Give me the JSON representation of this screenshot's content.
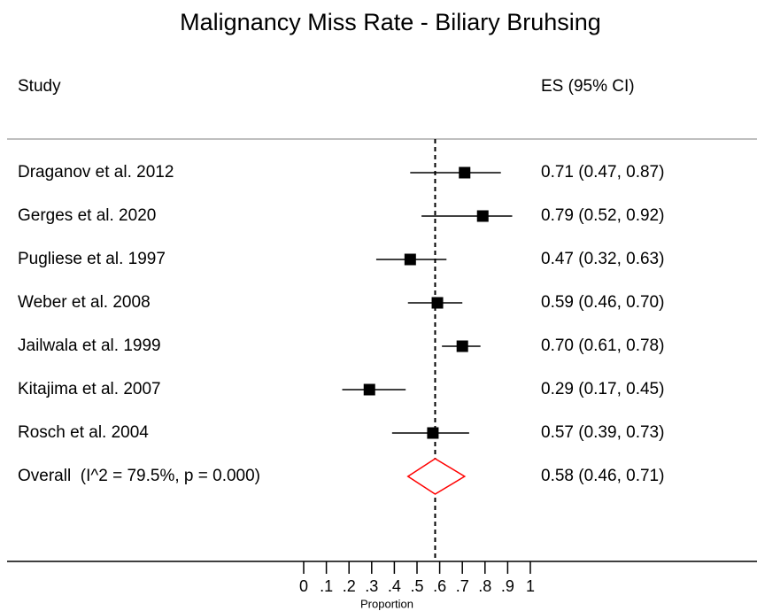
{
  "chart_data": {
    "type": "forest",
    "title": "Malignancy Miss Rate - Biliary Bruhsing",
    "study_header": "Study",
    "es_header": "ES (95% CI)",
    "xlabel": "Proportion",
    "categories": [
      "Draganov et al. 2012",
      "Gerges et al. 2020",
      "Pugliese et al. 1997",
      "Weber et al. 2008",
      "Jailwala et al. 1999",
      "Kitajima et al. 2007",
      "Rosch et al. 2004"
    ],
    "values": [
      0.71,
      0.79,
      0.47,
      0.59,
      0.7,
      0.29,
      0.57
    ],
    "lower": [
      0.47,
      0.52,
      0.32,
      0.46,
      0.61,
      0.17,
      0.39
    ],
    "upper": [
      0.87,
      0.92,
      0.63,
      0.7,
      0.78,
      0.45,
      0.73
    ],
    "value_labels": [
      "0.71 (0.47, 0.87)",
      "0.79 (0.52, 0.92)",
      "0.47 (0.32, 0.63)",
      "0.59 (0.46, 0.70)",
      "0.70 (0.61, 0.78)",
      "0.29 (0.17, 0.45)",
      "0.57 (0.39, 0.73)"
    ],
    "overall": {
      "label": "Overall  (I^2 = 79.5%, p = 0.000)",
      "value": 0.58,
      "lower": 0.46,
      "upper": 0.71,
      "value_label": "0.58 (0.46, 0.71)"
    },
    "xlim": [
      0,
      1
    ],
    "xticks": [
      0,
      {
        "value": 0.1,
        "label": ".1"
      },
      {
        "value": 0.2,
        "label": ".2"
      },
      {
        "value": 0.3,
        "label": ".3"
      },
      {
        "value": 0.4,
        "label": ".4"
      },
      {
        "value": 0.5,
        "label": ".5"
      },
      {
        "value": 0.6,
        "label": ".6"
      },
      {
        "value": 0.7,
        "label": ".7"
      },
      {
        "value": 0.8,
        "label": ".8"
      },
      {
        "value": 0.9,
        "label": ".9"
      },
      1
    ],
    "color": "#000000",
    "overall_color": "#ff0000",
    "title_color": "#1f3a6e"
  }
}
